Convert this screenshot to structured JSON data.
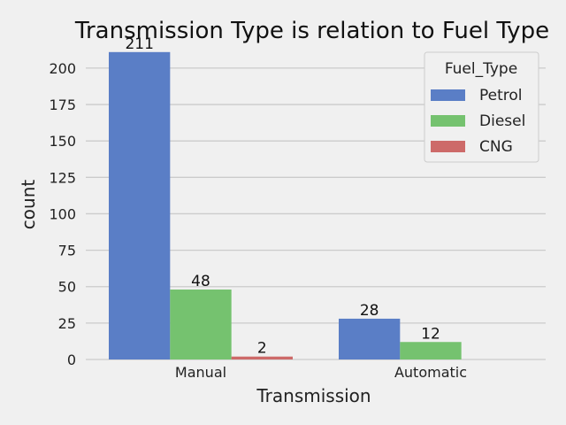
{
  "chart_data": {
    "type": "bar",
    "title": "Transmission Type is relation to Fuel Type",
    "xlabel": "Transmission",
    "ylabel": "count",
    "categories": [
      "Manual",
      "Automatic"
    ],
    "series": [
      {
        "name": "Petrol",
        "values": [
          211,
          28
        ],
        "color": "#5a7ec6"
      },
      {
        "name": "Diesel",
        "values": [
          48,
          12
        ],
        "color": "#75c26f"
      },
      {
        "name": "CNG",
        "values": [
          2,
          null
        ],
        "color": "#cd6a69"
      }
    ],
    "data_labels": [
      [
        "211",
        "28"
      ],
      [
        "48",
        "12"
      ],
      [
        "2",
        ""
      ]
    ],
    "ylim": [
      0,
      220
    ],
    "yticks": [
      0,
      25,
      50,
      75,
      100,
      125,
      150,
      175,
      200
    ],
    "grid": true,
    "legend": {
      "title": "Fuel_Type",
      "placement": "top-right"
    }
  }
}
